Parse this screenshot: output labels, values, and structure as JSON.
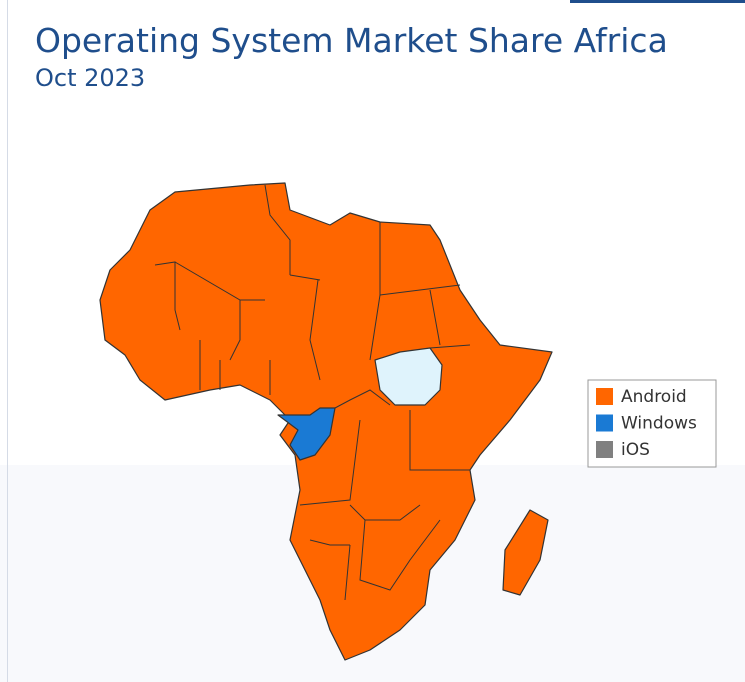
{
  "chart_data": {
    "type": "map",
    "title": "Operating System Market Share Africa",
    "subtitle": "Oct 2023",
    "series": [
      {
        "name": "Android",
        "color": "#ff6600"
      },
      {
        "name": "Windows",
        "color": "#1a7ad4"
      },
      {
        "name": "iOS",
        "color": "#808080"
      }
    ]
  }
}
